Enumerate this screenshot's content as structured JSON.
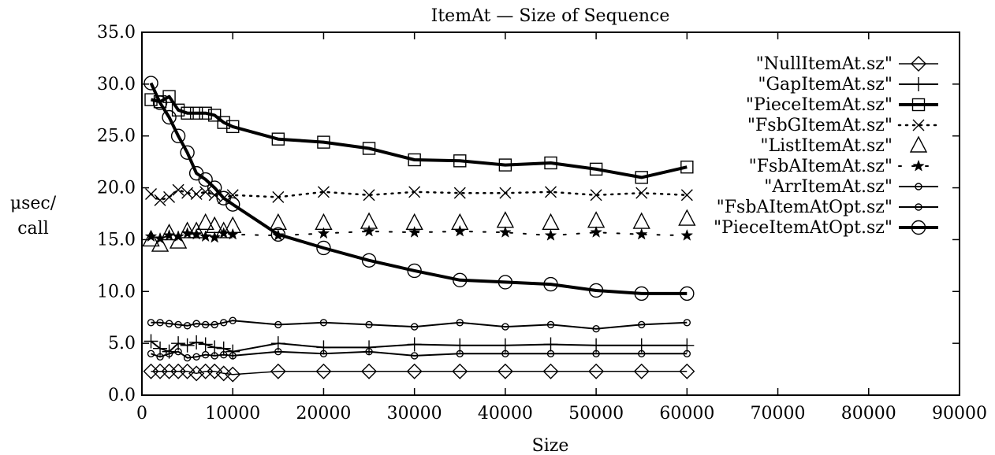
{
  "chart_data": {
    "type": "line",
    "title": "ItemAt — Size of Sequence",
    "xlabel": "Size",
    "ylabel": [
      "μsec/",
      "call"
    ],
    "xlim": [
      0,
      90000
    ],
    "ylim": [
      0,
      35
    ],
    "x_ticks": [
      0,
      10000,
      20000,
      30000,
      40000,
      50000,
      60000,
      70000,
      80000,
      90000
    ],
    "y_ticks": [
      0,
      5,
      10,
      15,
      20,
      25,
      30,
      35
    ],
    "x_tick_labels": [
      "0",
      "10000",
      "20000",
      "30000",
      "40000",
      "50000",
      "60000",
      "70000",
      "80000",
      "90000"
    ],
    "y_tick_labels": [
      "0.0",
      "5.0",
      "10.0",
      "15.0",
      "20.0",
      "25.0",
      "30.0",
      "35.0"
    ],
    "grid": false,
    "legend_position": "top-right",
    "x": [
      1000,
      2000,
      3000,
      4000,
      5000,
      6000,
      7000,
      8000,
      9000,
      10000,
      15000,
      20000,
      25000,
      30000,
      35000,
      40000,
      45000,
      50000,
      55000,
      60000
    ],
    "series": [
      {
        "name": "\"NullItemAt.sz\"",
        "marker": "diamond",
        "line": "solid",
        "stroke_width": 1.5,
        "values": [
          2.3,
          2.3,
          2.3,
          2.3,
          2.3,
          2.1,
          2.3,
          2.3,
          2.1,
          2.0,
          2.3,
          2.3,
          2.3,
          2.3,
          2.3,
          2.3,
          2.3,
          2.3,
          2.3,
          2.3
        ]
      },
      {
        "name": "\"GapItemAt.sz\"",
        "marker": "plus",
        "line": "solid",
        "stroke_width": 2,
        "values": [
          5.2,
          4.5,
          4.2,
          5.0,
          4.8,
          5.1,
          4.9,
          4.6,
          4.5,
          4.2,
          5.0,
          4.6,
          4.6,
          4.9,
          4.8,
          4.8,
          4.9,
          4.8,
          4.8,
          4.8
        ]
      },
      {
        "name": "\"PieceItemAt.sz\"",
        "marker": "square",
        "line": "solid",
        "stroke_width": 4,
        "values": [
          28.5,
          28.3,
          28.8,
          27.5,
          27.2,
          27.2,
          27.2,
          27.0,
          26.3,
          25.9,
          24.7,
          24.4,
          23.8,
          22.7,
          22.6,
          22.2,
          22.4,
          21.8,
          21.0,
          22.0
        ]
      },
      {
        "name": "\"FsbGItemAt.sz\"",
        "marker": "cross",
        "line": "dotted",
        "stroke_width": 2.5,
        "values": [
          19.4,
          18.8,
          19.1,
          19.8,
          19.5,
          19.4,
          19.6,
          19.3,
          19.0,
          19.3,
          19.1,
          19.6,
          19.3,
          19.6,
          19.5,
          19.5,
          19.6,
          19.3,
          19.5,
          19.3
        ]
      },
      {
        "name": "\"ListItemAt.sz\"",
        "marker": "triangle",
        "line": "none",
        "stroke_width": 1.5,
        "values": [
          15.0,
          14.5,
          15.6,
          14.8,
          15.8,
          15.8,
          16.6,
          16.3,
          15.8,
          16.3,
          16.6,
          16.6,
          16.7,
          16.6,
          16.6,
          16.8,
          16.6,
          16.8,
          16.7,
          17.0
        ]
      },
      {
        "name": "\"FsbAItemAt.sz\"",
        "marker": "star",
        "line": "dashdot",
        "stroke_width": 2,
        "values": [
          15.3,
          15.1,
          15.4,
          15.3,
          15.6,
          15.5,
          15.3,
          15.2,
          15.6,
          15.5,
          15.4,
          15.6,
          15.8,
          15.7,
          15.8,
          15.7,
          15.4,
          15.7,
          15.5,
          15.4
        ]
      },
      {
        "name": "\"ArrItemAt.sz\"",
        "marker": "small-circle",
        "line": "solid",
        "stroke_width": 2,
        "values": [
          7.0,
          7.0,
          6.9,
          6.8,
          6.7,
          6.9,
          6.8,
          6.8,
          7.0,
          7.2,
          6.8,
          7.0,
          6.8,
          6.6,
          7.0,
          6.6,
          6.8,
          6.4,
          6.8,
          7.0
        ]
      },
      {
        "name": "\"FsbAItemAtOpt.sz\"",
        "marker": "small-circle",
        "line": "solid",
        "stroke_width": 2,
        "values": [
          4.0,
          3.7,
          4.0,
          4.2,
          3.6,
          3.7,
          3.9,
          3.8,
          3.9,
          3.8,
          4.2,
          4.0,
          4.2,
          3.8,
          4.0,
          4.0,
          4.0,
          4.0,
          4.0,
          4.0
        ]
      },
      {
        "name": "\"PieceItemAtOpt.sz\"",
        "marker": "big-circle",
        "line": "solid",
        "stroke_width": 4,
        "values": [
          30.1,
          28.2,
          26.8,
          25.0,
          23.4,
          21.4,
          20.8,
          20.0,
          19.0,
          18.4,
          15.5,
          14.2,
          13.0,
          12.0,
          11.1,
          10.9,
          10.7,
          10.1,
          9.8,
          9.8
        ]
      }
    ]
  }
}
